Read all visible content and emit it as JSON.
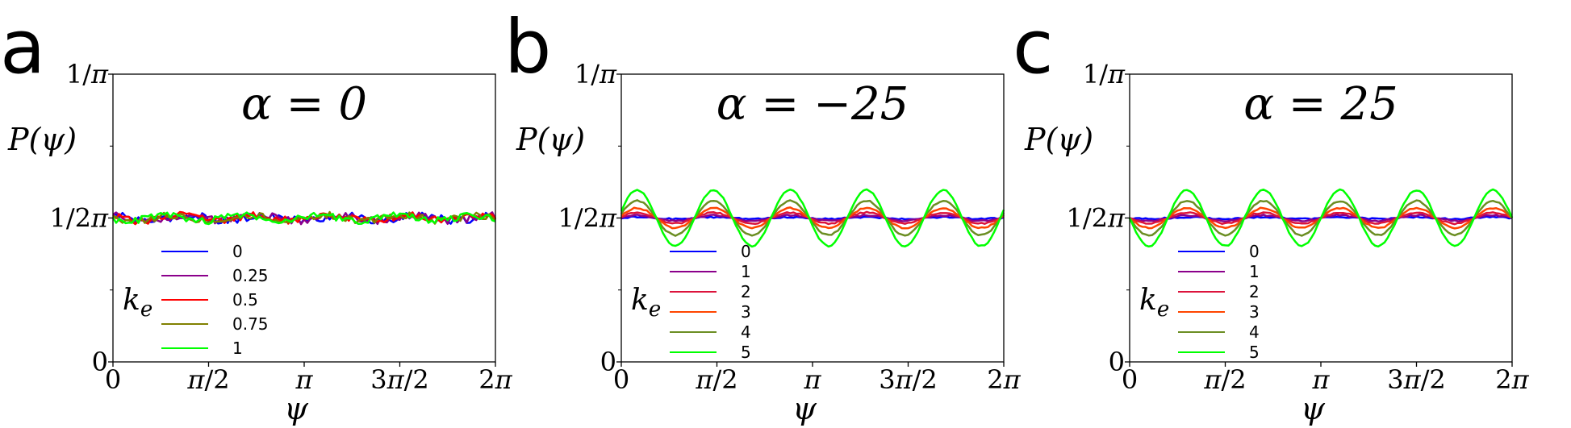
{
  "chart_data": [
    {
      "type": "line",
      "panel_label": "a",
      "title": "α = 0",
      "xlabel": "ψ",
      "ylabel": "P(ψ)",
      "xlim": [
        0,
        6.2832
      ],
      "ylim": [
        0,
        0.3183
      ],
      "x_ticks": [
        {
          "value": 0,
          "label": "0"
        },
        {
          "value": 1.5708,
          "label": "π/2"
        },
        {
          "value": 3.1416,
          "label": "π"
        },
        {
          "value": 4.7124,
          "label": "3π/2"
        },
        {
          "value": 6.2832,
          "label": "2π"
        }
      ],
      "y_ticks": [
        {
          "value": 0,
          "label": "0"
        },
        {
          "value": 0.1592,
          "label": "1/2π"
        },
        {
          "value": 0.3183,
          "label": "1/π"
        }
      ],
      "legend_title": "k_e",
      "legend_position": "lower-left",
      "grid": false,
      "series": [
        {
          "name": "0",
          "color": "#0000ff",
          "amplitude": 0.003,
          "phase": 0,
          "noise": 0.004
        },
        {
          "name": "0.25",
          "color": "#8b008b",
          "amplitude": 0.003,
          "phase": 0.4,
          "noise": 0.004
        },
        {
          "name": "0.5",
          "color": "#ff0000",
          "amplitude": 0.003,
          "phase": 0.9,
          "noise": 0.004
        },
        {
          "name": "0.75",
          "color": "#808000",
          "amplitude": 0.003,
          "phase": 1.4,
          "noise": 0.004
        },
        {
          "name": "1",
          "color": "#00ff00",
          "amplitude": 0.003,
          "phase": 1.9,
          "noise": 0.004
        }
      ]
    },
    {
      "type": "line",
      "panel_label": "b",
      "title": "α = −25",
      "xlabel": "ψ",
      "ylabel": "P(ψ)",
      "xlim": [
        0,
        6.2832
      ],
      "ylim": [
        0,
        0.3183
      ],
      "x_ticks": [
        {
          "value": 0,
          "label": "0"
        },
        {
          "value": 1.5708,
          "label": "π/2"
        },
        {
          "value": 3.1416,
          "label": "π"
        },
        {
          "value": 4.7124,
          "label": "3π/2"
        },
        {
          "value": 6.2832,
          "label": "2π"
        }
      ],
      "y_ticks": [
        {
          "value": 0,
          "label": "0"
        },
        {
          "value": 0.1592,
          "label": "1/2π"
        },
        {
          "value": 0.3183,
          "label": "1/π"
        }
      ],
      "legend_title": "k_e",
      "legend_position": "lower-left",
      "grid": false,
      "series": [
        {
          "name": "0",
          "color": "#0000ff",
          "amplitude": 0.001,
          "phase": -1.3,
          "noise": 0.0008
        },
        {
          "name": "1",
          "color": "#8b008b",
          "amplitude": 0.003,
          "phase": -1.3,
          "noise": 0.0008
        },
        {
          "name": "2",
          "color": "#dc143c",
          "amplitude": 0.006,
          "phase": -1.3,
          "noise": 0.0008
        },
        {
          "name": "3",
          "color": "#ff4500",
          "amplitude": 0.011,
          "phase": -1.3,
          "noise": 0.0008
        },
        {
          "name": "4",
          "color": "#6b8e23",
          "amplitude": 0.019,
          "phase": -1.3,
          "noise": 0.0008
        },
        {
          "name": "5",
          "color": "#00ff00",
          "amplitude": 0.031,
          "phase": -1.3,
          "noise": 0.0008
        }
      ]
    },
    {
      "type": "line",
      "panel_label": "c",
      "title": "α = 25",
      "xlabel": "ψ",
      "ylabel": "P(ψ)",
      "xlim": [
        0,
        6.2832
      ],
      "ylim": [
        0,
        0.3183
      ],
      "x_ticks": [
        {
          "value": 0,
          "label": "0"
        },
        {
          "value": 1.5708,
          "label": "π/2"
        },
        {
          "value": 3.1416,
          "label": "π"
        },
        {
          "value": 4.7124,
          "label": "3π/2"
        },
        {
          "value": 6.2832,
          "label": "2π"
        }
      ],
      "y_ticks": [
        {
          "value": 0,
          "label": "0"
        },
        {
          "value": 0.1592,
          "label": "1/2π"
        },
        {
          "value": 0.3183,
          "label": "1/π"
        }
      ],
      "legend_title": "k_e",
      "legend_position": "lower-left",
      "grid": false,
      "series": [
        {
          "name": "0",
          "color": "#0000ff",
          "amplitude": 0.001,
          "phase": 1.5708,
          "noise": 0.0008
        },
        {
          "name": "1",
          "color": "#8b008b",
          "amplitude": 0.003,
          "phase": 1.5708,
          "noise": 0.0008
        },
        {
          "name": "2",
          "color": "#dc143c",
          "amplitude": 0.006,
          "phase": 1.5708,
          "noise": 0.0008
        },
        {
          "name": "3",
          "color": "#ff4500",
          "amplitude": 0.011,
          "phase": 1.5708,
          "noise": 0.0008
        },
        {
          "name": "4",
          "color": "#6b8e23",
          "amplitude": 0.019,
          "phase": 1.5708,
          "noise": 0.0008
        },
        {
          "name": "5",
          "color": "#00ff00",
          "amplitude": 0.031,
          "phase": 1.5708,
          "noise": 0.0008
        }
      ]
    }
  ],
  "oscillation_frequency": 5
}
